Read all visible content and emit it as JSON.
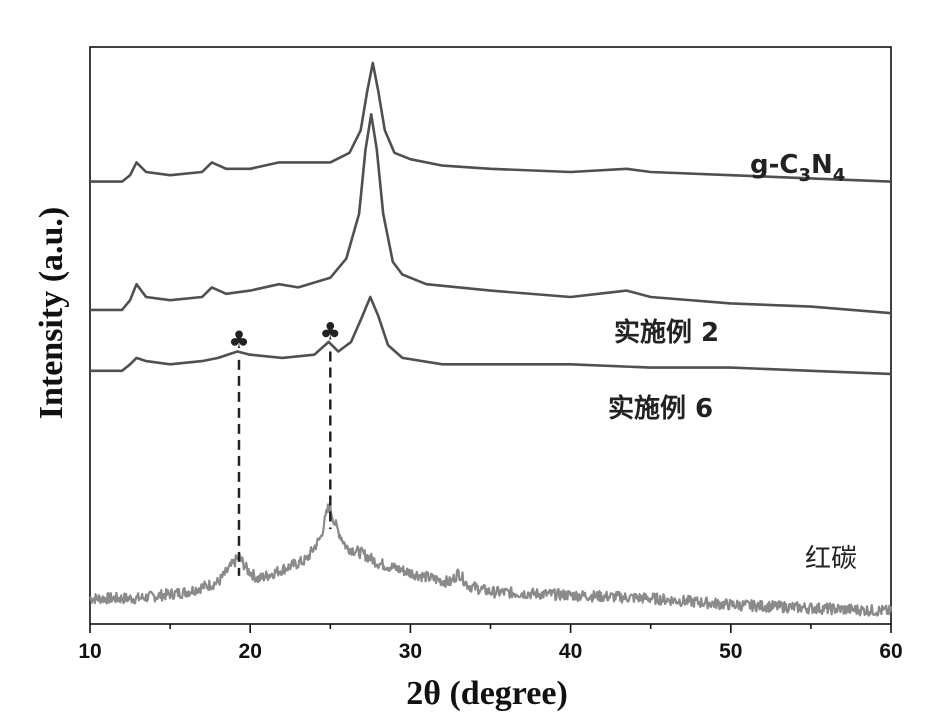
{
  "chart_data": {
    "type": "line",
    "xlabel": "2θ (degree)",
    "ylabel": "Intensity (a.u.)",
    "xlim": [
      10,
      60
    ],
    "xticks": [
      10,
      20,
      30,
      40,
      50,
      60
    ],
    "yticks_shown": false,
    "grid": false,
    "colors": {
      "axis": "#111111",
      "curve_dark": "#505050",
      "curve_light": "#8a8a8a",
      "dash": "#222222"
    },
    "series": [
      {
        "name": "g-C3N4",
        "label_parts": [
          "g-C",
          "3",
          "N",
          "4"
        ],
        "color": "#505050",
        "points": [
          [
            10,
            0.78
          ],
          [
            12,
            0.78
          ],
          [
            12.5,
            0.8
          ],
          [
            12.9,
            0.84
          ],
          [
            13.5,
            0.81
          ],
          [
            15,
            0.8
          ],
          [
            17,
            0.81
          ],
          [
            17.6,
            0.84
          ],
          [
            18.5,
            0.82
          ],
          [
            20,
            0.82
          ],
          [
            21.8,
            0.84
          ],
          [
            23,
            0.84
          ],
          [
            25,
            0.84
          ],
          [
            26.2,
            0.87
          ],
          [
            26.9,
            0.94
          ],
          [
            27.3,
            1.06
          ],
          [
            27.65,
            1.15
          ],
          [
            28.0,
            1.06
          ],
          [
            28.4,
            0.94
          ],
          [
            29,
            0.87
          ],
          [
            30,
            0.85
          ],
          [
            32,
            0.83
          ],
          [
            35,
            0.82
          ],
          [
            40,
            0.81
          ],
          [
            43.5,
            0.82
          ],
          [
            45,
            0.81
          ],
          [
            50,
            0.8
          ],
          [
            55,
            0.79
          ],
          [
            60,
            0.78
          ]
        ]
      },
      {
        "name": "实施例 2",
        "color": "#505050",
        "points": [
          [
            10,
            0.38
          ],
          [
            12,
            0.38
          ],
          [
            12.5,
            0.41
          ],
          [
            12.9,
            0.46
          ],
          [
            13.5,
            0.42
          ],
          [
            15,
            0.41
          ],
          [
            17,
            0.42
          ],
          [
            17.6,
            0.45
          ],
          [
            18.5,
            0.43
          ],
          [
            20,
            0.44
          ],
          [
            21.8,
            0.46
          ],
          [
            23,
            0.45
          ],
          [
            25,
            0.48
          ],
          [
            26,
            0.54
          ],
          [
            26.8,
            0.68
          ],
          [
            27.2,
            0.88
          ],
          [
            27.55,
            0.99
          ],
          [
            27.9,
            0.88
          ],
          [
            28.3,
            0.68
          ],
          [
            28.9,
            0.53
          ],
          [
            29.5,
            0.49
          ],
          [
            31,
            0.46
          ],
          [
            35,
            0.44
          ],
          [
            40,
            0.42
          ],
          [
            43.5,
            0.44
          ],
          [
            45,
            0.42
          ],
          [
            50,
            0.4
          ],
          [
            55,
            0.39
          ],
          [
            60,
            0.37
          ]
        ]
      },
      {
        "name": "实施例 6",
        "color": "#505050",
        "points": [
          [
            10,
            0.19
          ],
          [
            12,
            0.19
          ],
          [
            12.5,
            0.21
          ],
          [
            12.9,
            0.23
          ],
          [
            13.5,
            0.22
          ],
          [
            15,
            0.21
          ],
          [
            17,
            0.22
          ],
          [
            18,
            0.23
          ],
          [
            19.2,
            0.25
          ],
          [
            20,
            0.24
          ],
          [
            22,
            0.23
          ],
          [
            24,
            0.24
          ],
          [
            24.9,
            0.28
          ],
          [
            25.5,
            0.25
          ],
          [
            26.3,
            0.28
          ],
          [
            27.0,
            0.36
          ],
          [
            27.5,
            0.42
          ],
          [
            28.0,
            0.36
          ],
          [
            28.6,
            0.27
          ],
          [
            29.5,
            0.23
          ],
          [
            32,
            0.21
          ],
          [
            36,
            0.21
          ],
          [
            40,
            0.21
          ],
          [
            45,
            0.2
          ],
          [
            50,
            0.2
          ],
          [
            55,
            0.19
          ],
          [
            60,
            0.18
          ]
        ]
      },
      {
        "name": "红碳",
        "color": "#8a8a8a",
        "noisy": true,
        "points": [
          [
            10,
            -0.52
          ],
          [
            13,
            -0.52
          ],
          [
            16,
            -0.5
          ],
          [
            18,
            -0.47
          ],
          [
            18.8,
            -0.42
          ],
          [
            19.3,
            -0.39
          ],
          [
            19.8,
            -0.43
          ],
          [
            20.5,
            -0.46
          ],
          [
            22,
            -0.43
          ],
          [
            23.5,
            -0.4
          ],
          [
            24.4,
            -0.33
          ],
          [
            24.9,
            -0.23
          ],
          [
            25.4,
            -0.3
          ],
          [
            26,
            -0.36
          ],
          [
            27,
            -0.38
          ],
          [
            28,
            -0.41
          ],
          [
            30,
            -0.44
          ],
          [
            31.5,
            -0.46
          ],
          [
            32.5,
            -0.47
          ],
          [
            33,
            -0.44
          ],
          [
            33.6,
            -0.48
          ],
          [
            35,
            -0.5
          ],
          [
            40,
            -0.51
          ],
          [
            45,
            -0.52
          ],
          [
            50,
            -0.54
          ],
          [
            55,
            -0.55
          ],
          [
            60,
            -0.56
          ]
        ]
      }
    ],
    "markers": [
      {
        "symbol": "♣",
        "x": 19.3
      },
      {
        "symbol": "♣",
        "x": 25.0
      }
    ]
  }
}
